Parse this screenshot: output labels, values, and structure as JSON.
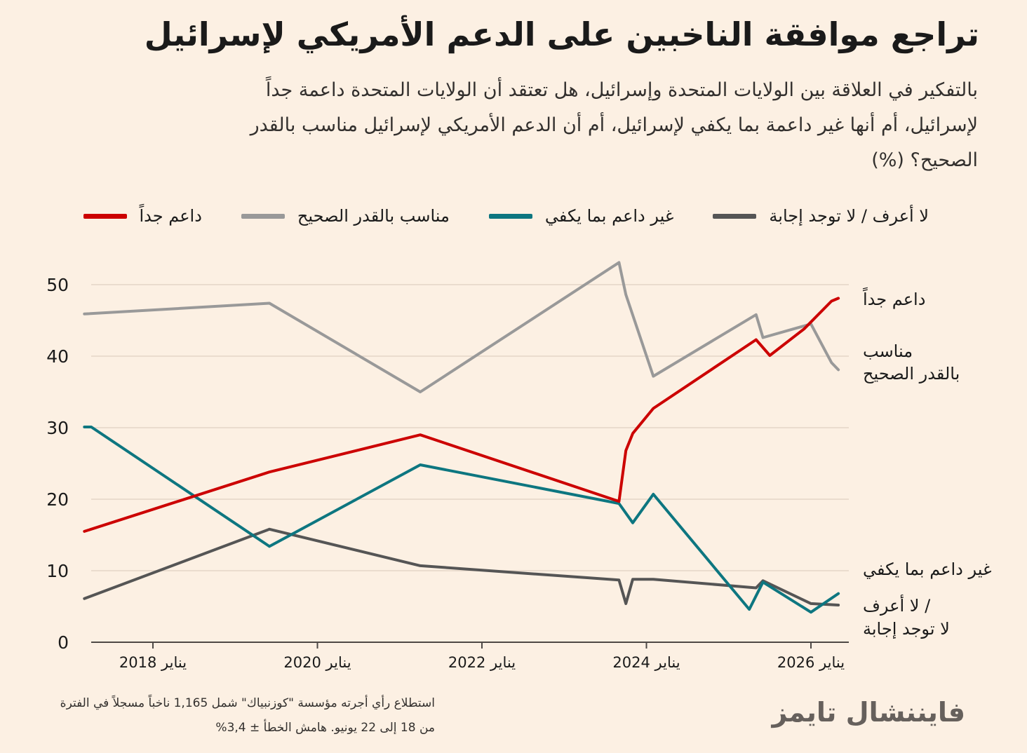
{
  "title": "تراجع موافقة الناخبين على الدعم الأمريكي لإسرائيل",
  "subtitle": "بالتفكير في العلاقة بين الولايات المتحدة وإسرائيل، هل تعتقد أن الولايات المتحدة داعمة جداً لإسرائيل، أم أنها غير داعمة بما يكفي لإسرائيل، أم أن الدعم الأمريكي لإسرائيل مناسب بالقدر الصحيح؟ (%)",
  "footer": {
    "note_line1": "استطلاع رأي أجرته مؤسسة \"كوزنبياك\" شمل 1,165 ناخباً مسجلاً في الفترة",
    "note_line2": "من 18 إلى 22 يونيو. هامش الخطأ ± 3,4%",
    "brand": "فايننشال تايمز"
  },
  "chart_data": {
    "type": "line",
    "ylim": [
      0,
      55
    ],
    "yticks": [
      "0",
      "10",
      "20",
      "30",
      "40",
      "50"
    ],
    "xticks": [
      {
        "date": "2018-01",
        "label": "يناير 2018"
      },
      {
        "date": "2020-01",
        "label": "يناير 2020"
      },
      {
        "date": "2022-01",
        "label": "يناير 2022"
      },
      {
        "date": "2024-01",
        "label": "يناير 2024"
      },
      {
        "date": "2026-01",
        "label": "يناير 2026"
      }
    ],
    "series": [
      {
        "name": "داعم جداً",
        "end_label": [
          "داعم جداً"
        ],
        "color": "#cc0000",
        "points": [
          [
            "2017-03",
            15.5
          ],
          [
            "2019-06",
            23.8
          ],
          [
            "2021-04",
            29
          ],
          [
            "2023-09",
            19.7
          ],
          [
            "2023-10",
            26.8
          ],
          [
            "2023-11",
            29.2
          ],
          [
            "2024-02",
            32.7
          ],
          [
            "2025-05",
            42.3
          ],
          [
            "2025-07",
            40.1
          ],
          [
            "2025-12",
            43.8
          ],
          [
            "2026-04",
            47.7
          ],
          [
            "2026-05",
            48.1
          ]
        ]
      },
      {
        "name": "مناسب بالقدر الصحيح",
        "end_label": [
          "مناسب",
          "بالقدر الصحيح"
        ],
        "color": "#999999",
        "points": [
          [
            "2017-03",
            45.9
          ],
          [
            "2019-06",
            47.4
          ],
          [
            "2021-04",
            35
          ],
          [
            "2023-09",
            53.1
          ],
          [
            "2023-10",
            48.6
          ],
          [
            "2024-02",
            37.2
          ],
          [
            "2025-05",
            45.8
          ],
          [
            "2025-06",
            42.6
          ],
          [
            "2026-01",
            44.5
          ],
          [
            "2026-04",
            39.1
          ],
          [
            "2026-05",
            38.1
          ]
        ]
      },
      {
        "name": "غير داعم بما يكفي",
        "end_label": [
          "غير داعم بما يكفي"
        ],
        "color": "#0d7680",
        "points": [
          [
            "2017-03",
            30.1
          ],
          [
            "2017-04",
            30.1
          ],
          [
            "2019-06",
            13.4
          ],
          [
            "2021-04",
            24.8
          ],
          [
            "2023-09",
            19.4
          ],
          [
            "2023-11",
            16.7
          ],
          [
            "2024-02",
            20.7
          ],
          [
            "2025-04",
            4.6
          ],
          [
            "2025-06",
            8.4
          ],
          [
            "2026-01",
            4.2
          ],
          [
            "2026-05",
            6.8
          ]
        ]
      },
      {
        "name": "لا أعرف / لا توجد إجابة",
        "end_label": [
          "لا أعرف /",
          "لا توجد إجابة"
        ],
        "color": "#555555",
        "points": [
          [
            "2017-03",
            6.1
          ],
          [
            "2019-06",
            15.8
          ],
          [
            "2021-04",
            10.7
          ],
          [
            "2023-09",
            8.7
          ],
          [
            "2023-10",
            5.4
          ],
          [
            "2023-11",
            8.8
          ],
          [
            "2024-02",
            8.8
          ],
          [
            "2025-05",
            7.6
          ],
          [
            "2025-06",
            8.6
          ],
          [
            "2026-01",
            5.4
          ],
          [
            "2026-05",
            5.2
          ]
        ]
      }
    ]
  }
}
